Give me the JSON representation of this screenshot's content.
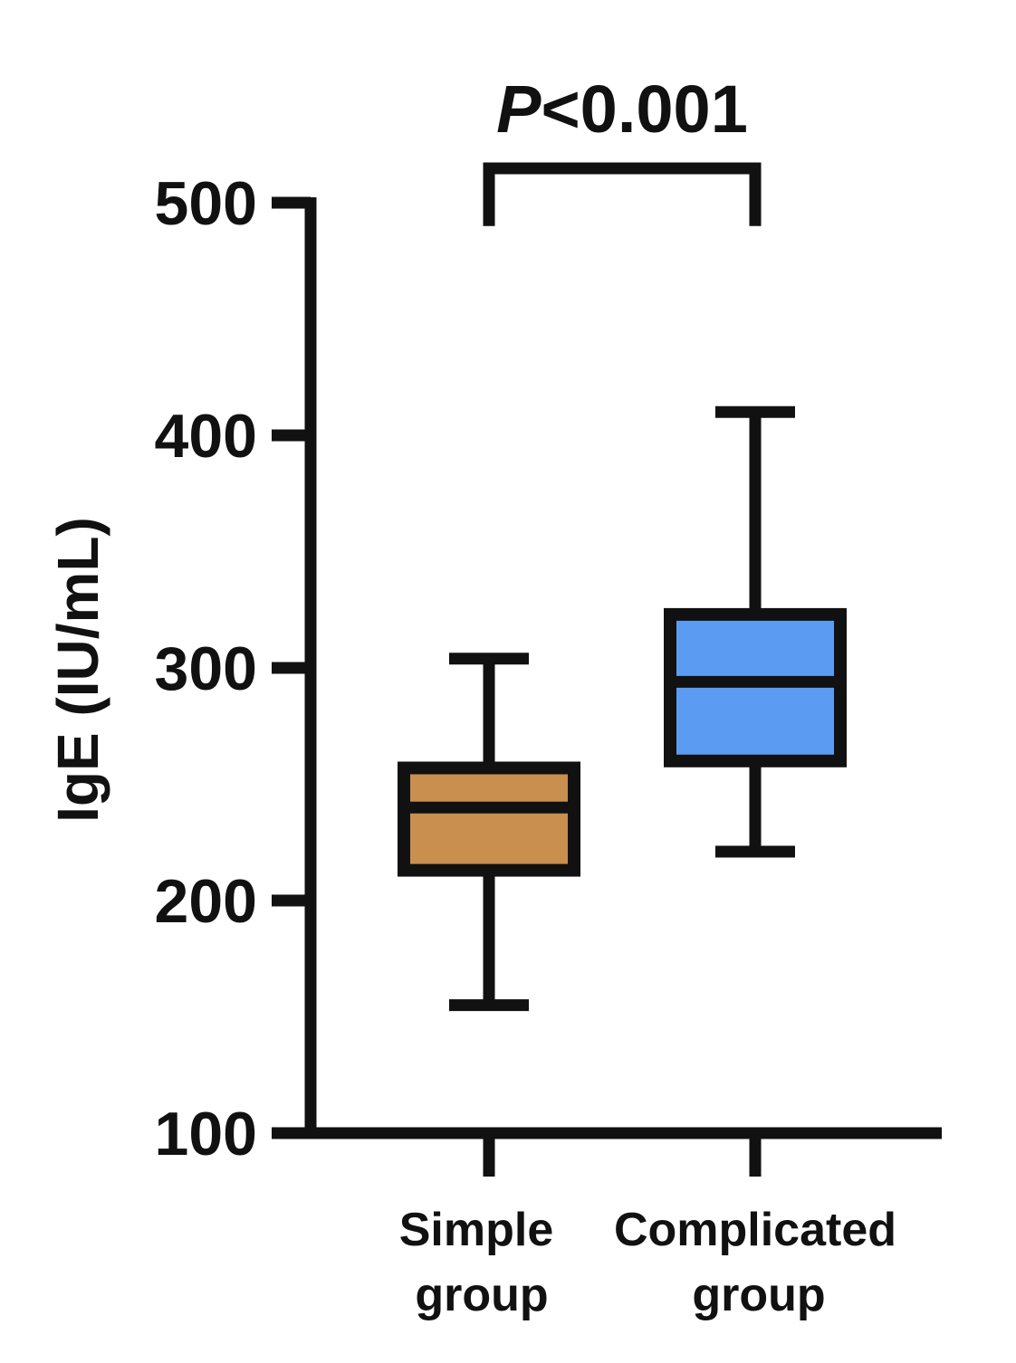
{
  "chart_data": {
    "type": "boxplot",
    "ylabel": "IgE (IU/mL)",
    "ylim": [
      100,
      500
    ],
    "yticks": [
      100,
      200,
      300,
      400,
      500
    ],
    "grid": false,
    "categories": [
      {
        "line1": "Simple",
        "line2": "group"
      },
      {
        "line1": "Complicated",
        "line2": "group"
      }
    ],
    "boxes": [
      {
        "name": "Simple group",
        "min": 155,
        "q1": 213,
        "median": 240,
        "q3": 257,
        "max": 304,
        "color": "#C98F4E"
      },
      {
        "name": "Complicated group",
        "min": 221,
        "q1": 260,
        "median": 294,
        "q3": 323,
        "max": 410,
        "color": "#5B9CF2"
      }
    ],
    "annotation": {
      "p_symbol": "P",
      "p_text": "<0.001",
      "bracket_y": 490
    }
  }
}
